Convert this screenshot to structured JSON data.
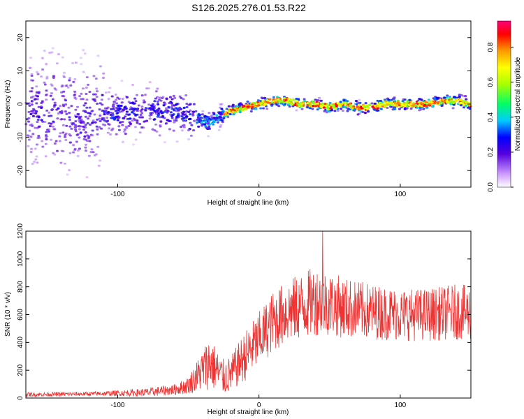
{
  "title": "S126.2025.276.01.53.R22",
  "colors": {
    "signal_line": "#ee3333",
    "background": "#ffffff",
    "frame": "#000000"
  },
  "chart_data": [
    {
      "type": "heatmap",
      "xlabel": "Height of straight line (km)",
      "ylabel": "Frequency (Hz)",
      "xlim": [
        -165,
        150
      ],
      "ylim": [
        -25,
        25
      ],
      "xticks": [
        -100,
        0,
        100
      ],
      "yticks": [
        -20,
        -10,
        0,
        10,
        20
      ],
      "grid": false,
      "ridge": {
        "description_points_km": [
          -165,
          -140,
          -120,
          -100,
          -80,
          -60,
          -50,
          -40,
          -35,
          -30,
          -20,
          -10,
          0,
          10,
          20,
          30,
          40,
          50,
          60,
          70,
          80,
          90,
          100,
          110,
          120,
          130,
          140,
          150
        ],
        "frequency_hz": [
          -2,
          -3,
          -4,
          -3,
          -2,
          -2,
          -3,
          -5,
          -6,
          -4,
          -2,
          -1,
          0,
          1,
          1,
          0,
          0,
          -1,
          0,
          -1,
          -1,
          0,
          0,
          0,
          0,
          1,
          1,
          0
        ]
      },
      "colorbar": {
        "label": "Normalized spectral amplitude",
        "range": [
          0.0,
          0.95
        ],
        "ticks": [
          "0.0",
          "0.2",
          "0.4",
          "0.6",
          "0.8"
        ],
        "tick_values": [
          0.0,
          0.2,
          0.4,
          0.6,
          0.8
        ]
      }
    },
    {
      "type": "line",
      "xlabel": "Height of straight line (km)",
      "ylabel": "SNR (10 * v/v)",
      "xlim": [
        -165,
        150
      ],
      "ylim": [
        0,
        1200
      ],
      "xticks": [
        -100,
        0,
        100
      ],
      "yticks": [
        0,
        200,
        400,
        600,
        800,
        1000,
        1200
      ],
      "grid": false,
      "series": [
        {
          "name": "SNR",
          "envelope_x_km": [
            -165,
            -120,
            -100,
            -80,
            -60,
            -50,
            -40,
            -35,
            -30,
            -25,
            -20,
            -10,
            0,
            10,
            20,
            30,
            40,
            50,
            60,
            80,
            100,
            120,
            140,
            150
          ],
          "envelope_mean": [
            25,
            30,
            35,
            40,
            60,
            90,
            200,
            260,
            200,
            150,
            170,
            300,
            420,
            550,
            620,
            660,
            700,
            680,
            650,
            620,
            600,
            600,
            620,
            610
          ],
          "envelope_spread": [
            15,
            15,
            20,
            30,
            40,
            60,
            150,
            200,
            150,
            130,
            130,
            180,
            200,
            220,
            230,
            240,
            250,
            230,
            220,
            200,
            190,
            190,
            200,
            200
          ],
          "peak_value": 1200,
          "peak_x_km": 45
        }
      ]
    }
  ]
}
